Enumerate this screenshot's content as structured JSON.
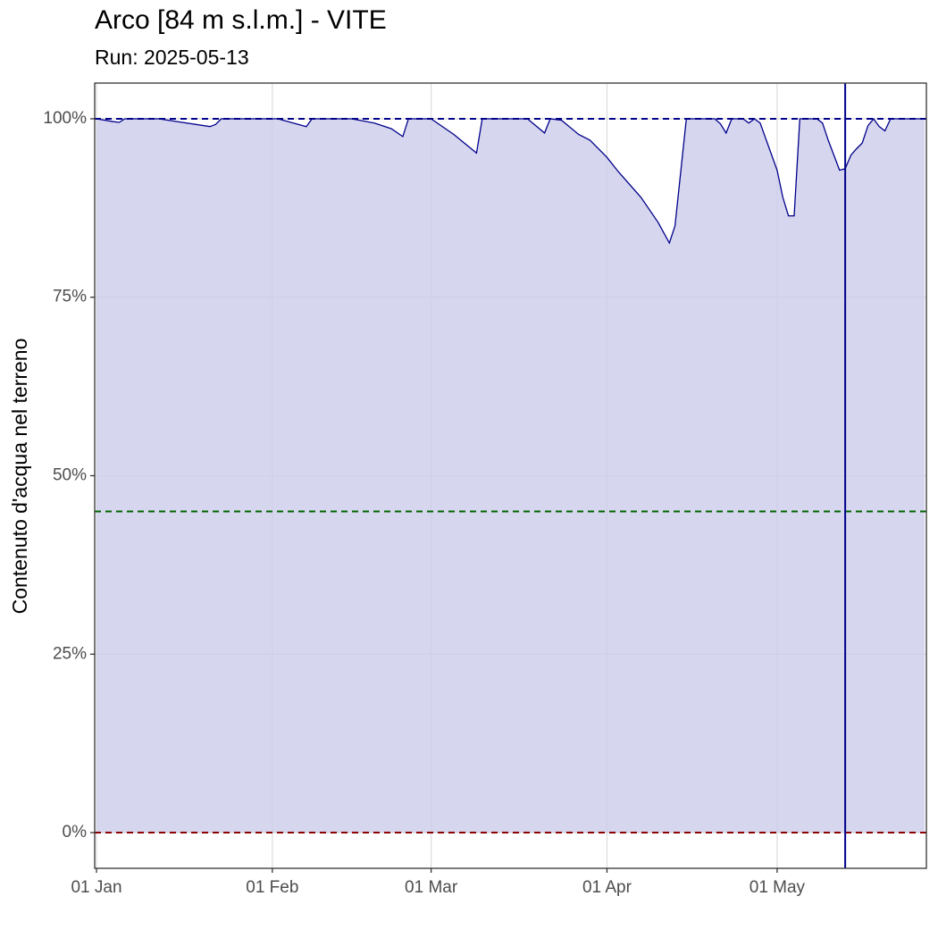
{
  "chart_data": {
    "type": "area",
    "title": "Arco [84 m s.l.m.] - VITE",
    "subtitle": "Run: 2025-05-13",
    "y_label": "Contenuto d'acqua nel terreno",
    "x": [
      "01 Jan",
      "04 Jan",
      "05 Jan",
      "06 Jan",
      "12 Jan",
      "21 Jan",
      "22 Jan",
      "23 Jan",
      "02 Feb",
      "07 Feb",
      "08 Feb",
      "15 Feb",
      "19 Feb",
      "22 Feb",
      "24 Feb",
      "25 Feb",
      "01 Mar",
      "05 Mar",
      "09 Mar",
      "10 Mar",
      "18 Mar",
      "21 Mar",
      "22 Mar",
      "24 Mar",
      "27 Mar",
      "29 Mar",
      "01 Apr",
      "03 Apr",
      "07 Apr",
      "10 Apr",
      "12 Apr",
      "13 Apr",
      "15 Apr",
      "20 Apr",
      "21 Apr",
      "22 Apr",
      "23 Apr",
      "25 Apr",
      "26 Apr",
      "27 Apr",
      "28 Apr",
      "01 May",
      "02 May",
      "03 May",
      "04 May",
      "05 May",
      "08 May",
      "09 May",
      "10 May",
      "12 May",
      "13 May",
      "14 May",
      "15 May",
      "16 May",
      "17 May",
      "18 May",
      "19 May",
      "20 May",
      "21 May",
      "27 May"
    ],
    "series": [
      {
        "color": "#00008b",
        "fill": "#ccccea",
        "values": [
          100,
          99.6,
          99.5,
          100,
          100,
          98.9,
          99.2,
          100,
          100,
          98.9,
          100,
          100,
          99.4,
          98.6,
          97.5,
          100,
          100,
          97.8,
          95.2,
          100,
          100,
          98,
          100,
          99.8,
          97.8,
          97,
          94.6,
          92.6,
          89,
          85.5,
          82.6,
          85,
          100,
          100,
          99.3,
          98,
          100,
          100,
          99.4,
          100,
          99.4,
          92.8,
          89,
          86.4,
          86.4,
          100,
          100,
          99.4,
          97,
          92.8,
          93,
          94.9,
          95.8,
          96.6,
          99,
          100,
          98.9,
          98.3,
          100,
          100
        ]
      }
    ],
    "xlim": [
      "01 Jan",
      "27 May"
    ],
    "xticks": [
      "01 Jan",
      "01 Feb",
      "01 Mar",
      "01 Apr",
      "01 May"
    ],
    "ylim": [
      -5,
      105
    ],
    "yticks": [
      {
        "value": 0,
        "label": "0%"
      },
      {
        "value": 25,
        "label": "25%"
      },
      {
        "value": 50,
        "label": "50%"
      },
      {
        "value": 75,
        "label": "75%"
      },
      {
        "value": 100,
        "label": "100%"
      }
    ],
    "grid": true,
    "hlines": [
      {
        "value": 100,
        "color": "#00008b"
      },
      {
        "value": 45,
        "color": "#006400"
      },
      {
        "value": 0,
        "color": "#8b0000"
      }
    ],
    "vline": {
      "x": "13 May",
      "color": "#00008b"
    }
  }
}
